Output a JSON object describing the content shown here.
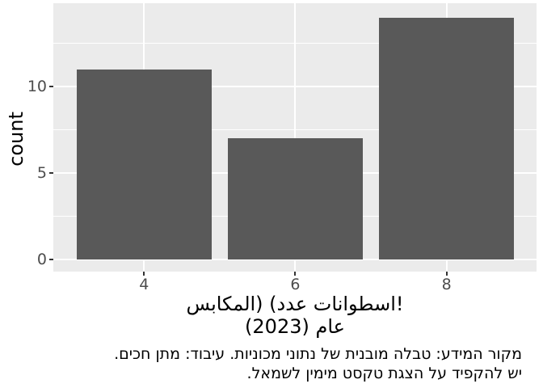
{
  "chart_data": {
    "type": "bar",
    "categories": [
      4,
      6,
      8
    ],
    "values": [
      11,
      7,
      14
    ],
    "ylabel": "count",
    "xlabel_parts": [
      "المكابس",
      ") (",
      "عدد",
      " ",
      "اسطوانات",
      "!"
    ],
    "xlabel_line2": "عام (2023)",
    "caption_lines": [
      "מקור המידע: טבלה מובנית של נתוני מכוניות. עיבוד: מתן חכים.",
      "יש להקפיד על הצגת טקסט מימין לשמאל."
    ],
    "x_ticks": [
      4,
      6,
      8
    ],
    "y_ticks": [
      0,
      5,
      10
    ],
    "y_minor_ticks": [
      2.5,
      7.5,
      12.5
    ],
    "x_domain": [
      2.8,
      9.19
    ],
    "y_domain": [
      -0.72,
      14.84
    ],
    "bar_width": 1.78,
    "grid": "on",
    "legend": "none",
    "colors": {
      "bar": "#595959",
      "panel_bg": "#EBEBEB",
      "grid": "#FFFFFF",
      "tick_text": "#4D4D4D",
      "tick_mark": "#333333",
      "title_text": "#000000",
      "background": "#FFFFFF"
    }
  }
}
